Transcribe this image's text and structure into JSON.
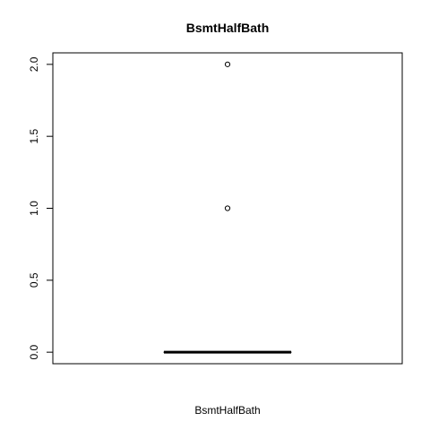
{
  "chart_data": {
    "type": "box",
    "title": "BsmtHalfBath",
    "xlabel": "BsmtHalfBath",
    "ylabel": "",
    "ylim": [
      -0.08,
      2.08
    ],
    "yticks": [
      {
        "value": 0.0,
        "label": "0.0"
      },
      {
        "value": 0.5,
        "label": "0.5"
      },
      {
        "value": 1.0,
        "label": "1.0"
      },
      {
        "value": 1.5,
        "label": "1.5"
      },
      {
        "value": 2.0,
        "label": "2.0"
      }
    ],
    "box": {
      "min": 0,
      "q1": 0,
      "median": 0,
      "q3": 0,
      "max": 0
    },
    "outliers": [
      1.0,
      2.0
    ],
    "grid": false
  }
}
